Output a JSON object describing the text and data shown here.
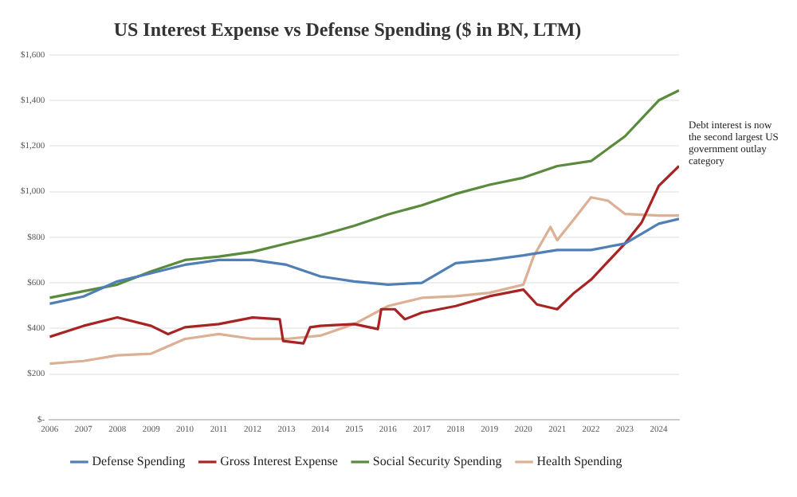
{
  "chart_data": {
    "type": "line",
    "title": "US Interest Expense vs Defense Spending ($ in BN, LTM)",
    "xlim": [
      2006,
      2024.6
    ],
    "xticks": [
      2006,
      2007,
      2008,
      2009,
      2010,
      2011,
      2012,
      2013,
      2014,
      2015,
      2016,
      2017,
      2018,
      2019,
      2020,
      2021,
      2022,
      2023,
      2024
    ],
    "ylim": [
      0,
      1600
    ],
    "yticks": [
      {
        "value": 0,
        "label": "$-"
      },
      {
        "value": 200,
        "label": "$200"
      },
      {
        "value": 400,
        "label": "$400"
      },
      {
        "value": 600,
        "label": "$600"
      },
      {
        "value": 800,
        "label": "$800"
      },
      {
        "value": 1000,
        "label": "$1,000"
      },
      {
        "value": 1200,
        "label": "$1,200"
      },
      {
        "value": 1400,
        "label": "$1,400"
      },
      {
        "value": 1600,
        "label": "$1,600"
      }
    ],
    "grid": "y",
    "legend": "bottom",
    "marker": "none",
    "line_style": "solid",
    "annotations": [
      "Debt interest is now the second largest US government outlay category"
    ],
    "series": [
      {
        "name": "Defense Spending",
        "color": "#4f7fb5",
        "x": [
          2006,
          2007,
          2008,
          2009,
          2010,
          2011,
          2012,
          2013,
          2014,
          2015,
          2016,
          2017,
          2018,
          2019,
          2020,
          2021,
          2022,
          2023,
          2024,
          2024.6
        ],
        "values": [
          508,
          540,
          606,
          642,
          679,
          700,
          700,
          679,
          628,
          606,
          592,
          600,
          686,
          700,
          720,
          744,
          744,
          772,
          859,
          880
        ]
      },
      {
        "name": "Gross Interest Expense",
        "color": "#a82424",
        "x": [
          2006,
          2007,
          2008,
          2009,
          2009.5,
          2010,
          2011,
          2012,
          2012.8,
          2012.9,
          2013.5,
          2013.7,
          2014,
          2015,
          2015.7,
          2015.8,
          2016.2,
          2016.5,
          2017,
          2018,
          2019,
          2020,
          2020.4,
          2021,
          2021.5,
          2022,
          2023,
          2023.5,
          2024,
          2024.6
        ],
        "values": [
          363,
          411,
          448,
          411,
          375,
          405,
          419,
          448,
          440,
          345,
          334,
          405,
          411,
          419,
          397,
          484,
          484,
          440,
          469,
          498,
          541,
          570,
          505,
          484,
          556,
          614,
          772,
          866,
          1025,
          1112
        ]
      },
      {
        "name": "Social Security Spending",
        "color": "#5a8a3c",
        "x": [
          2006,
          2007,
          2008,
          2009,
          2010,
          2011,
          2012,
          2013,
          2014,
          2015,
          2016,
          2017,
          2018,
          2019,
          2020,
          2021,
          2022,
          2023,
          2024,
          2024.6
        ],
        "values": [
          534,
          563,
          592,
          650,
          700,
          715,
          736,
          772,
          808,
          850,
          900,
          940,
          990,
          1030,
          1061,
          1112,
          1134,
          1242,
          1400,
          1444
        ]
      },
      {
        "name": "Health Spending",
        "color": "#dcb094",
        "x": [
          2006,
          2007,
          2008,
          2009,
          2010,
          2011,
          2012,
          2013,
          2014,
          2015,
          2016,
          2017,
          2018,
          2019,
          2020,
          2020.3,
          2020.8,
          2021,
          2021.5,
          2022,
          2022.5,
          2023,
          2024,
          2024.6
        ],
        "values": [
          245,
          257,
          282,
          289,
          354,
          375,
          354,
          354,
          368,
          419,
          498,
          534,
          541,
          556,
          592,
          715,
          845,
          787,
          880,
          975,
          960,
          902,
          895,
          895
        ]
      }
    ]
  }
}
